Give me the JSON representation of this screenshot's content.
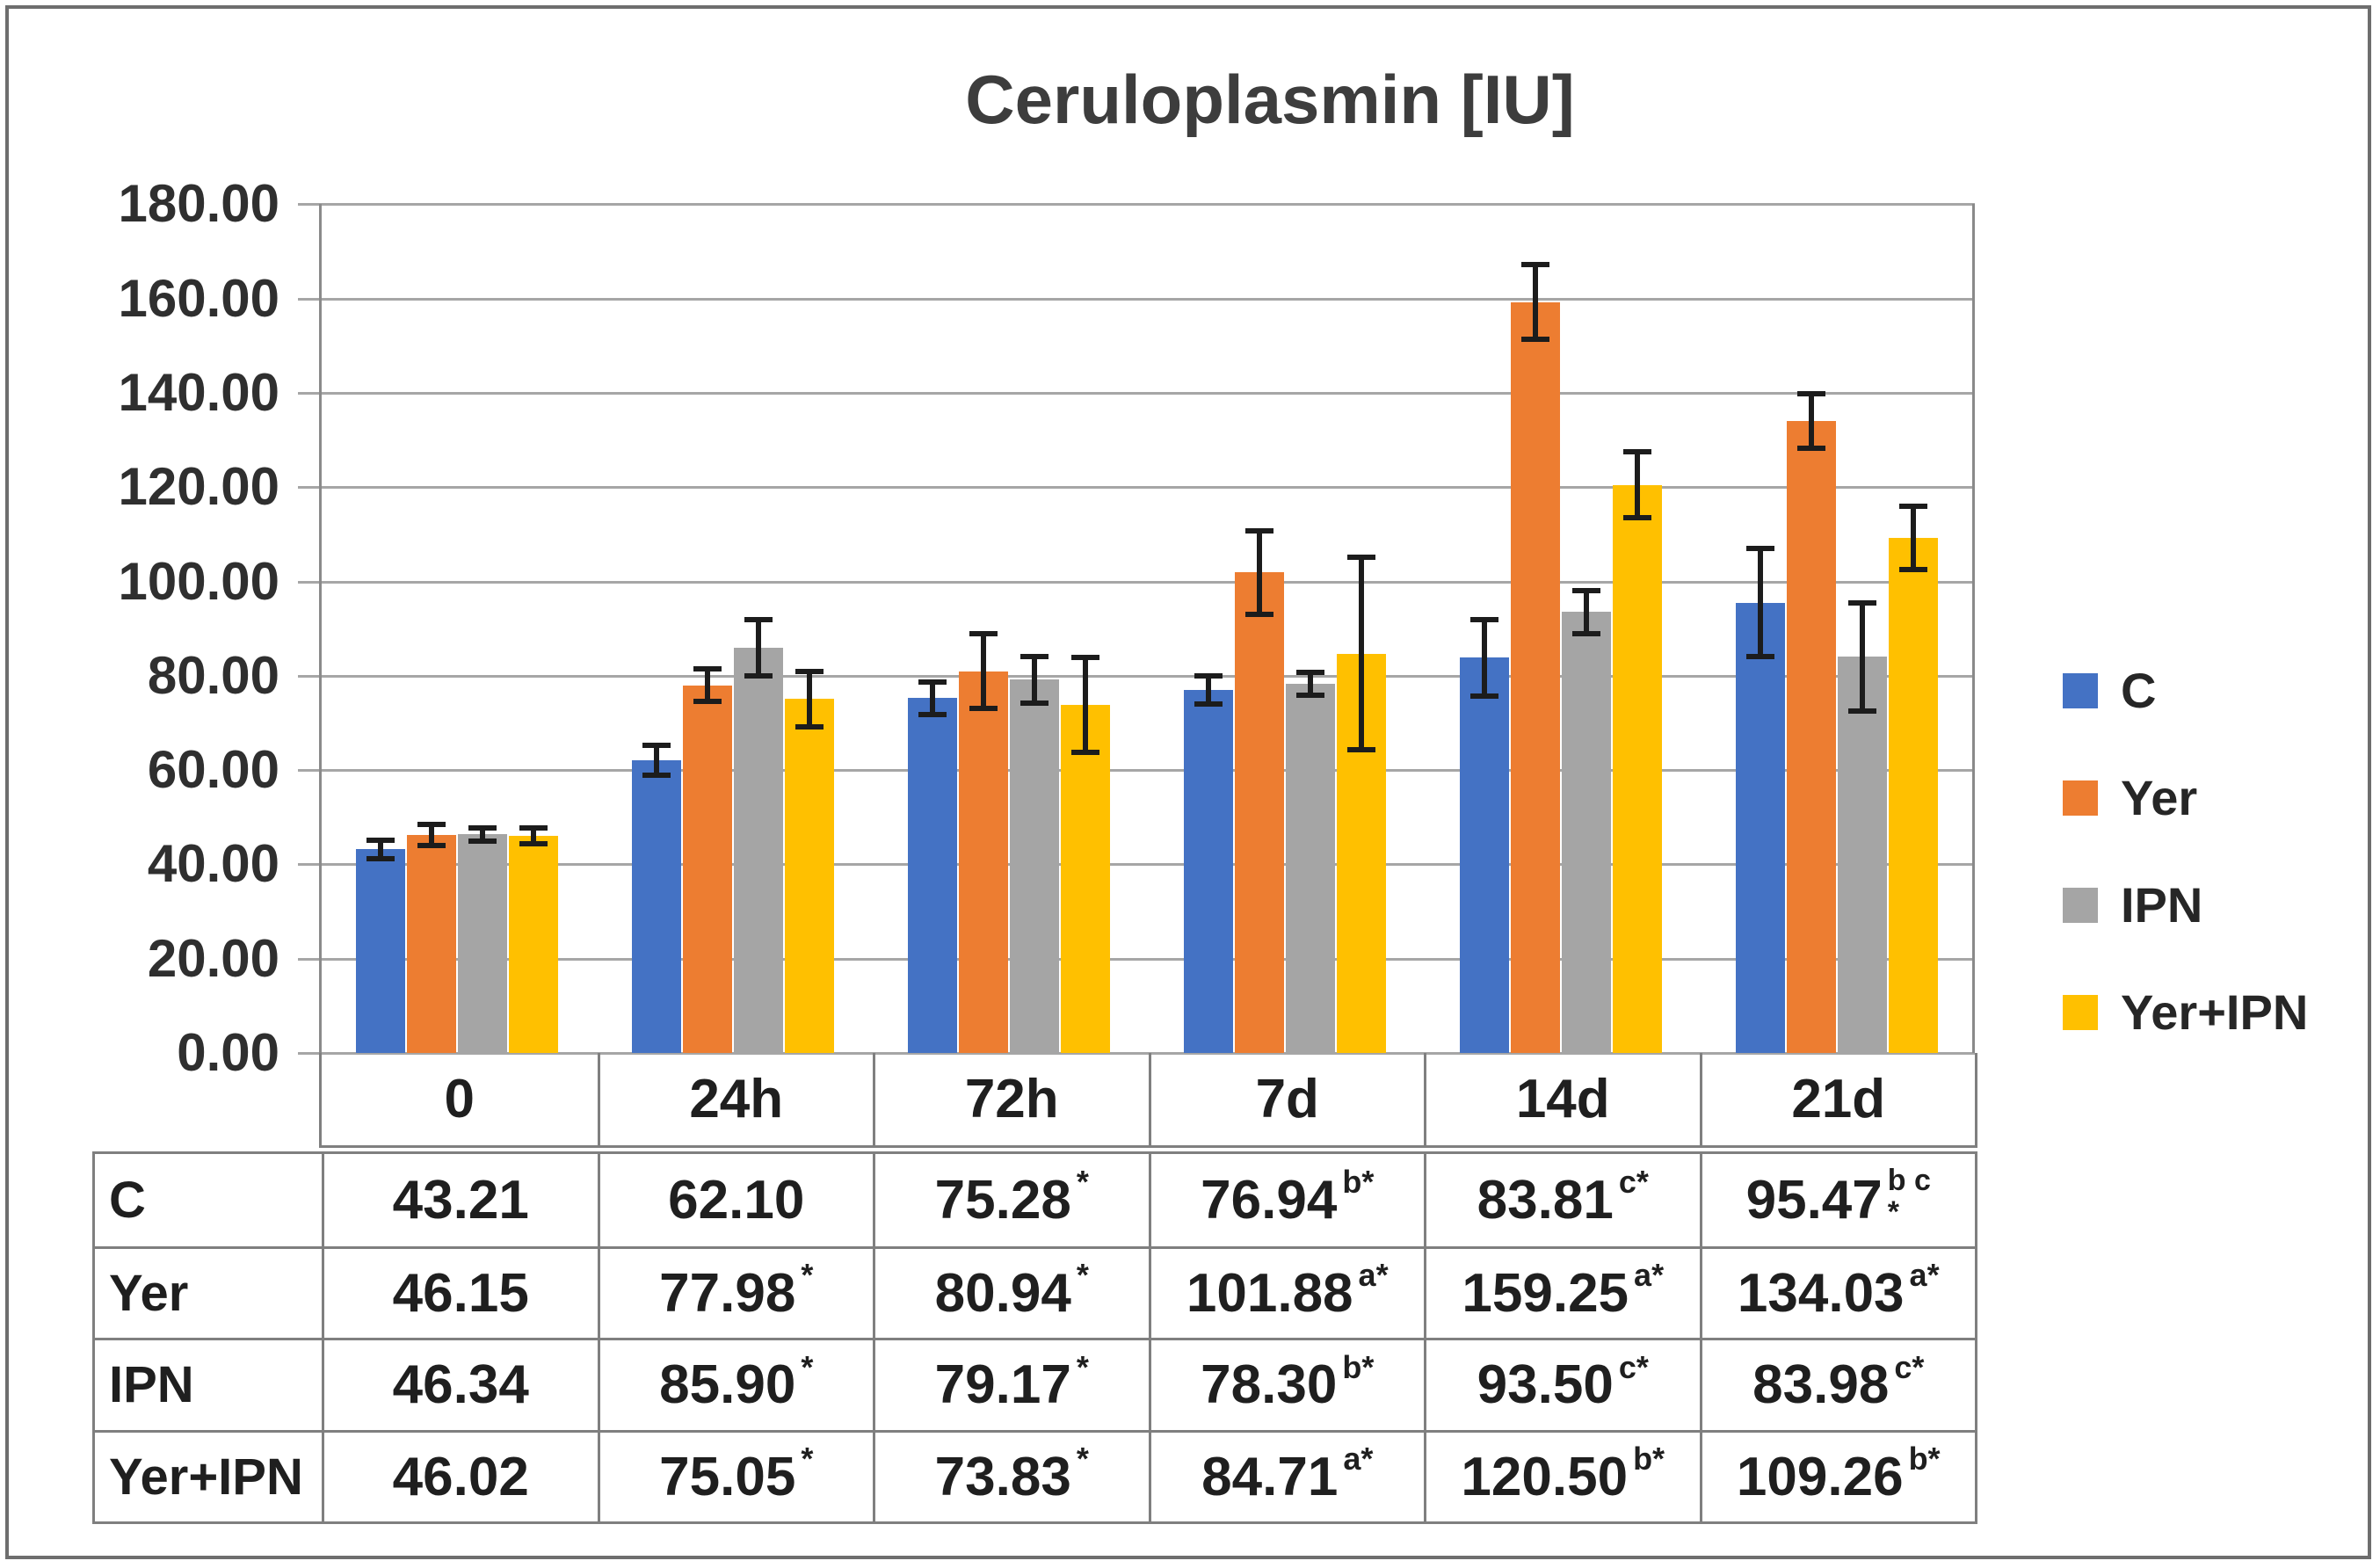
{
  "chart_data": {
    "type": "bar",
    "title": "Ceruloplasmin [IU]",
    "categories": [
      "0",
      "24h",
      "72h",
      "7d",
      "14d",
      "21d"
    ],
    "ylim": [
      0,
      180
    ],
    "ytick_step": 20,
    "ytick_labels": [
      "0.00",
      "20.00",
      "40.00",
      "60.00",
      "80.00",
      "100.00",
      "120.00",
      "140.00",
      "160.00",
      "180.00"
    ],
    "grid": true,
    "legend_position": "right",
    "series": [
      {
        "name": "C",
        "color": "#4472C4",
        "values": [
          43.21,
          62.1,
          75.28,
          76.94,
          83.81,
          95.47
        ],
        "errors": [
          2.5,
          3.7,
          4.0,
          3.5,
          8.7,
          12.0
        ]
      },
      {
        "name": "Yer",
        "color": "#ED7D31",
        "values": [
          46.15,
          77.98,
          80.94,
          101.88,
          159.25,
          134.03
        ],
        "errors": [
          2.8,
          4.0,
          8.5,
          9.5,
          8.5,
          6.3
        ]
      },
      {
        "name": "IPN",
        "color": "#A5A5A5",
        "values": [
          46.34,
          85.9,
          79.17,
          78.3,
          93.5,
          83.98
        ],
        "errors": [
          2.0,
          6.5,
          5.5,
          3.0,
          5.2,
          12.0
        ]
      },
      {
        "name": "Yer+IPN",
        "color": "#FFC000",
        "values": [
          46.02,
          75.05,
          73.83,
          84.71,
          120.5,
          109.26
        ],
        "errors": [
          2.2,
          6.5,
          10.7,
          21.0,
          7.5,
          7.3
        ]
      }
    ],
    "value_table": {
      "rows": [
        {
          "header": "C",
          "cells": [
            {
              "text": "43.21"
            },
            {
              "text": "62.10"
            },
            {
              "text": "75.28",
              "sup": "*"
            },
            {
              "text": "76.94",
              "sup": "b*"
            },
            {
              "text": "83.81",
              "sup": "c*"
            },
            {
              "text": "95.47",
              "sup": "b c",
              "sup2": "*"
            }
          ]
        },
        {
          "header": "Yer",
          "cells": [
            {
              "text": "46.15"
            },
            {
              "text": "77.98",
              "sup": "*"
            },
            {
              "text": "80.94",
              "sup": "*"
            },
            {
              "text": "101.88",
              "sup": "a*"
            },
            {
              "text": "159.25",
              "sup": "a*"
            },
            {
              "text": "134.03",
              "sup": "a*"
            }
          ]
        },
        {
          "header": "IPN",
          "cells": [
            {
              "text": "46.34"
            },
            {
              "text": "85.90",
              "sup": "*"
            },
            {
              "text": "79.17",
              "sup": "*"
            },
            {
              "text": "78.30",
              "sup": "b*"
            },
            {
              "text": "93.50",
              "sup": "c*"
            },
            {
              "text": "83.98",
              "sup": "c*"
            }
          ]
        },
        {
          "header": "Yer+IPN",
          "cells": [
            {
              "text": "46.02"
            },
            {
              "text": "75.05",
              "sup": "*"
            },
            {
              "text": "73.83",
              "sup": "*"
            },
            {
              "text": "84.71",
              "sup": "a*"
            },
            {
              "text": "120.50",
              "sup": "b*"
            },
            {
              "text": "109.26",
              "sup": "b*"
            }
          ]
        }
      ]
    }
  }
}
